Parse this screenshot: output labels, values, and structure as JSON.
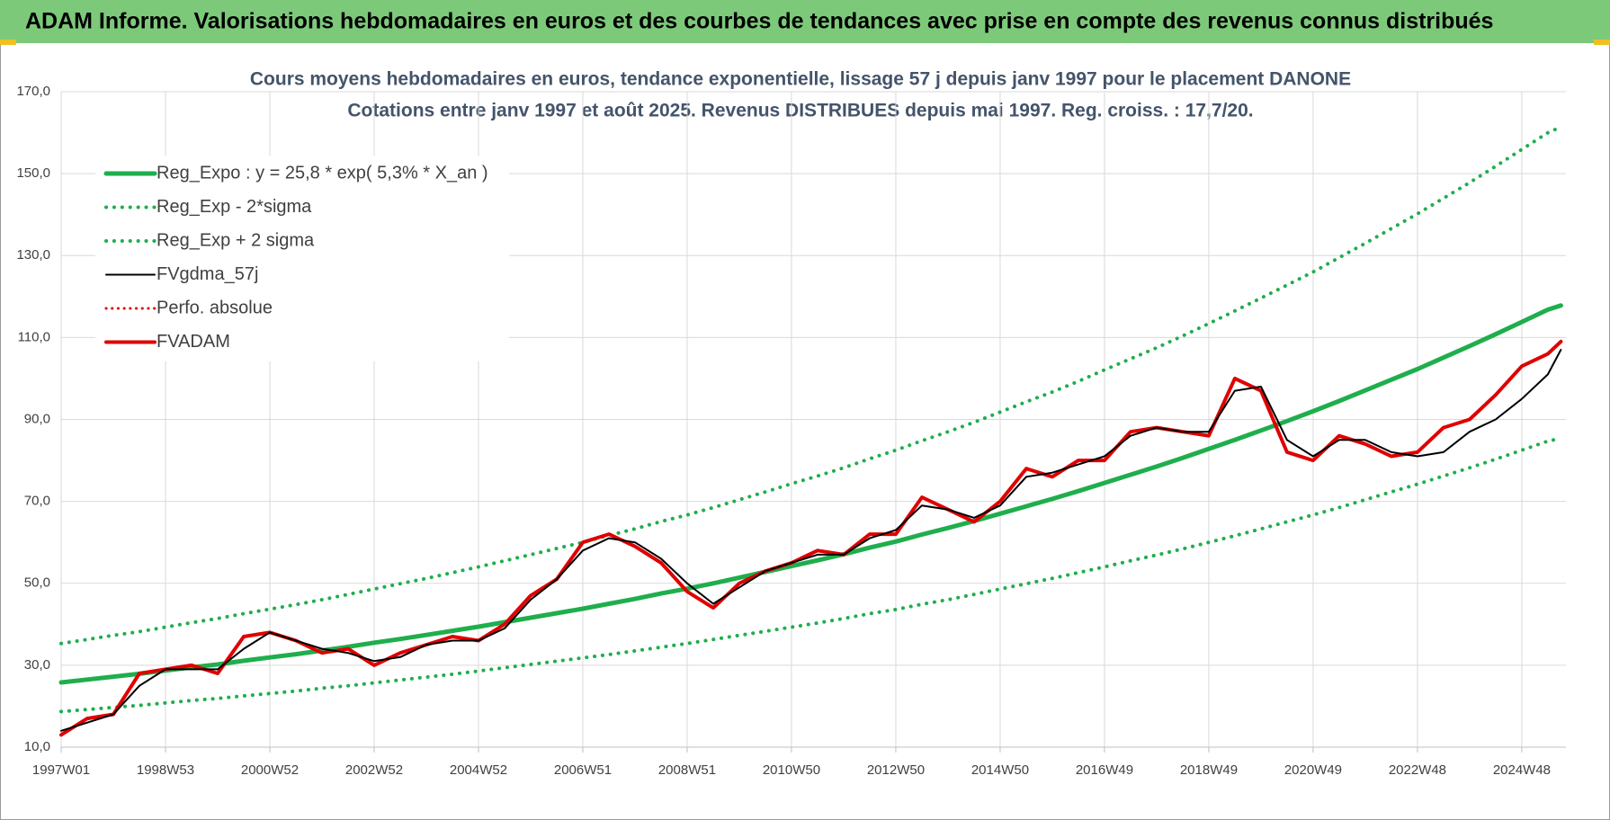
{
  "header": {
    "title": "ADAM Informe. Valorisations hebdomadaires en euros et des courbes de tendances avec prise en compte des revenus connus distribués"
  },
  "chart_data": {
    "type": "line",
    "title": "Cours moyens hebdomadaires en euros, tendance exponentielle, lissage 57 j depuis janv 1997  pour le placement DANONE",
    "subtitle": "Cotations entre janv 1997 et août 2025. Revenus DISTRIBUES depuis mai 1997. Reg. croiss. : 17,7/20.",
    "x": [
      0,
      26,
      52,
      78,
      104,
      130,
      156,
      182,
      208,
      234,
      260,
      286,
      312,
      338,
      364,
      390,
      416,
      442,
      468,
      494,
      520,
      546,
      572,
      598,
      624,
      650,
      676,
      702,
      728,
      754,
      780,
      806,
      832,
      858,
      884,
      910,
      936,
      962,
      988,
      1014,
      1040,
      1066,
      1092,
      1118,
      1144,
      1170,
      1196,
      1222,
      1248,
      1274,
      1300,
      1326,
      1352,
      1378,
      1404,
      1430,
      1456,
      1482,
      1495
    ],
    "xlim": [
      0,
      1500
    ],
    "xticks": [
      {
        "value": 0,
        "label": "1997W01"
      },
      {
        "value": 104,
        "label": "1998W53"
      },
      {
        "value": 208,
        "label": "2000W52"
      },
      {
        "value": 312,
        "label": "2002W52"
      },
      {
        "value": 416,
        "label": "2004W52"
      },
      {
        "value": 520,
        "label": "2006W51"
      },
      {
        "value": 624,
        "label": "2008W51"
      },
      {
        "value": 728,
        "label": "2010W50"
      },
      {
        "value": 832,
        "label": "2012W50"
      },
      {
        "value": 936,
        "label": "2014W50"
      },
      {
        "value": 1040,
        "label": "2016W49"
      },
      {
        "value": 1144,
        "label": "2018W49"
      },
      {
        "value": 1248,
        "label": "2020W49"
      },
      {
        "value": 1352,
        "label": "2022W48"
      },
      {
        "value": 1456,
        "label": "2024W48"
      }
    ],
    "ylim": [
      10,
      170
    ],
    "yticks": [
      {
        "value": 10,
        "label": "10,0"
      },
      {
        "value": 30,
        "label": "30,0"
      },
      {
        "value": 50,
        "label": "50,0"
      },
      {
        "value": 70,
        "label": "70,0"
      },
      {
        "value": 90,
        "label": "90,0"
      },
      {
        "value": 110,
        "label": "110,0"
      },
      {
        "value": 130,
        "label": "130,0"
      },
      {
        "value": 150,
        "label": "150,0"
      },
      {
        "value": 170,
        "label": "170,0"
      }
    ],
    "grid": true,
    "legend": "upper left",
    "series": [
      {
        "name": "Reg_Expo : y = 25,8 * exp( 5,3% *  X_an )",
        "color": "#1fae4c",
        "line_style": "solid",
        "line_width": 5,
        "values": [
          25.8,
          26.5,
          27.2,
          27.9,
          28.7,
          29.5,
          30.2,
          31.1,
          31.9,
          32.7,
          33.6,
          34.5,
          35.5,
          36.4,
          37.4,
          38.4,
          39.4,
          40.5,
          41.6,
          42.7,
          43.8,
          45.0,
          46.2,
          47.5,
          48.7,
          50.0,
          51.4,
          52.8,
          54.2,
          55.6,
          57.1,
          58.7,
          60.2,
          61.9,
          63.5,
          65.2,
          67.0,
          68.8,
          70.6,
          72.5,
          74.5,
          76.5,
          78.5,
          80.6,
          82.8,
          85.0,
          87.3,
          89.6,
          92.0,
          94.5,
          97.1,
          99.7,
          102.3,
          105.1,
          107.9,
          110.8,
          113.8,
          116.8,
          117.8
        ]
      },
      {
        "name": "Reg_Exp - 2*sigma",
        "color": "#1fae4c",
        "line_style": "dotted",
        "line_width": 4,
        "values": [
          18.7,
          19.2,
          19.7,
          20.2,
          20.8,
          21.4,
          21.9,
          22.5,
          23.1,
          23.7,
          24.4,
          25.0,
          25.7,
          26.4,
          27.1,
          27.8,
          28.6,
          29.4,
          30.2,
          31.0,
          31.8,
          32.6,
          33.5,
          34.4,
          35.3,
          36.3,
          37.3,
          38.3,
          39.3,
          40.3,
          41.4,
          42.6,
          43.6,
          44.9,
          46.0,
          47.3,
          48.6,
          49.9,
          51.2,
          52.6,
          54.0,
          55.5,
          56.9,
          58.4,
          60.0,
          61.6,
          63.3,
          65.0,
          66.7,
          68.5,
          70.4,
          72.3,
          74.2,
          76.2,
          78.2,
          80.3,
          82.5,
          84.7,
          85.4
        ]
      },
      {
        "name": "Reg_Exp + 2 sigma",
        "color": "#1fae4c",
        "line_style": "dotted",
        "line_width": 4,
        "values": [
          35.3,
          36.3,
          37.3,
          38.2,
          39.3,
          40.4,
          41.4,
          42.6,
          43.7,
          44.8,
          46.0,
          47.3,
          48.6,
          49.9,
          51.2,
          52.6,
          54.0,
          55.5,
          57.0,
          58.5,
          60.0,
          61.7,
          63.3,
          65.1,
          66.7,
          68.5,
          70.4,
          72.3,
          74.3,
          76.2,
          78.2,
          80.4,
          82.5,
          84.8,
          87.0,
          89.3,
          91.8,
          94.3,
          96.7,
          99.3,
          102.1,
          104.8,
          107.5,
          110.4,
          113.4,
          116.5,
          119.6,
          122.8,
          126.0,
          129.5,
          133.0,
          136.6,
          140.2,
          144.0,
          147.8,
          151.8,
          155.9,
          160.0,
          161.4
        ]
      },
      {
        "name": "FVgdma_57j",
        "color": "#000000",
        "line_style": "solid",
        "line_width": 2,
        "values": [
          14,
          16,
          18,
          25,
          29,
          29,
          29,
          34,
          38,
          36,
          34,
          33,
          31,
          32,
          35,
          36,
          36,
          39,
          46,
          51,
          58,
          61,
          60,
          56,
          50,
          45,
          49,
          53,
          55,
          57,
          57,
          61,
          63,
          69,
          68,
          66,
          69,
          76,
          77,
          79,
          81,
          86,
          88,
          87,
          87,
          97,
          98,
          85,
          81,
          85,
          85,
          82,
          81,
          82,
          87,
          90,
          95,
          101,
          107
        ]
      },
      {
        "name": "Perfo. absolue",
        "color": "#e00000",
        "line_style": "dotted",
        "line_width": 3,
        "values": [
          13,
          17,
          18,
          28,
          29,
          30,
          28,
          37,
          38,
          36,
          33,
          34,
          30,
          33,
          35,
          37,
          36,
          40,
          47,
          51,
          60,
          62,
          59,
          55,
          48,
          44,
          50,
          53,
          55,
          58,
          57,
          62,
          62,
          71,
          68,
          65,
          70,
          78,
          76,
          80,
          80,
          87,
          88,
          87,
          86,
          100,
          97,
          82,
          80,
          86,
          84,
          81,
          82,
          88,
          90,
          96,
          103,
          106,
          109
        ]
      },
      {
        "name": "FVADAM",
        "color": "#e00000",
        "line_style": "solid",
        "line_width": 4,
        "values": [
          13,
          17,
          18,
          28,
          29,
          30,
          28,
          37,
          38,
          36,
          33,
          34,
          30,
          33,
          35,
          37,
          36,
          40,
          47,
          51,
          60,
          62,
          59,
          55,
          48,
          44,
          50,
          53,
          55,
          58,
          57,
          62,
          62,
          71,
          68,
          65,
          70,
          78,
          76,
          80,
          80,
          87,
          88,
          87,
          86,
          100,
          97,
          82,
          80,
          86,
          84,
          81,
          82,
          88,
          90,
          96,
          103,
          106,
          109
        ]
      }
    ]
  }
}
